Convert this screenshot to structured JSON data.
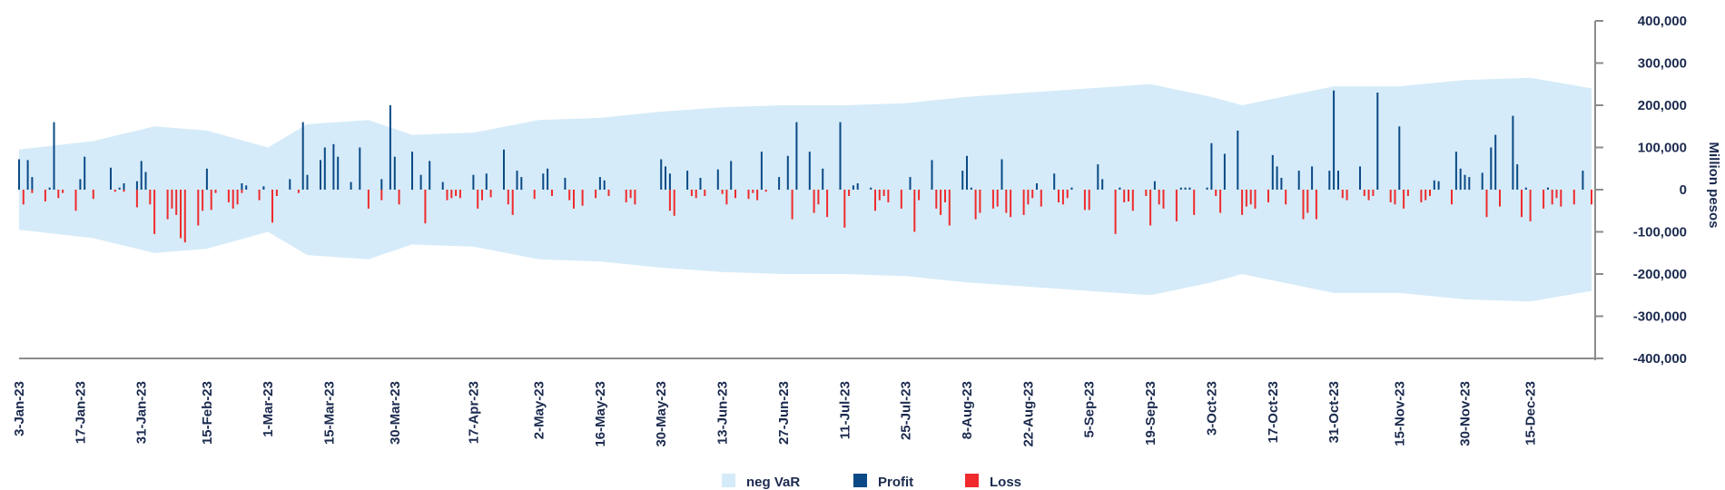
{
  "chart_data": {
    "type": "bar",
    "title": "",
    "xlabel": "",
    "ylabel": "Million pesos",
    "ylim": [
      -400000,
      400000
    ],
    "y_ticks": [
      400000,
      300000,
      200000,
      100000,
      0,
      -100000,
      -200000,
      -300000,
      -400000
    ],
    "y_tick_labels": [
      "400,000",
      "300,000",
      "200,000",
      "100,000",
      "0",
      "-100,000",
      "-200,000",
      "-300,000",
      "-400,000"
    ],
    "y_axis_position": "right",
    "grid": false,
    "legend_position": "bottom-center",
    "x_range": [
      "2023-01-03",
      "2023-12-29"
    ],
    "x_tick_labels": [
      "3-Jan-23",
      "17-Jan-23",
      "31-Jan-23",
      "15-Feb-23",
      "1-Mar-23",
      "15-Mar-23",
      "30-Mar-23",
      "17-Apr-23",
      "2-May-23",
      "16-May-23",
      "30-May-23",
      "13-Jun-23",
      "27-Jun-23",
      "11-Jul-23",
      "25-Jul-23",
      "8-Aug-23",
      "22-Aug-23",
      "5-Sep-23",
      "19-Sep-23",
      "3-Oct-23",
      "17-Oct-23",
      "31-Oct-23",
      "15-Nov-23",
      "30-Nov-23",
      "15-Dec-23"
    ],
    "colors": {
      "neg_var": "#d5ebf9",
      "profit": "#0b4a86",
      "loss": "#ef2b2d",
      "axis": "#8c8c8c",
      "text": "#1b2a4e"
    },
    "legend": [
      {
        "name": "neg VaR",
        "color": "#d5ebf9"
      },
      {
        "name": "Profit",
        "color": "#0b4a86"
      },
      {
        "name": "Loss",
        "color": "#ef2b2d"
      }
    ],
    "series": [
      {
        "name": "neg VaR",
        "kind": "symmetric-band",
        "x": [
          "2023-01-03",
          "2023-01-20",
          "2023-02-03",
          "2023-02-15",
          "2023-03-01",
          "2023-03-10",
          "2023-03-24",
          "2023-04-03",
          "2023-04-17",
          "2023-05-02",
          "2023-05-16",
          "2023-05-30",
          "2023-06-13",
          "2023-06-27",
          "2023-07-11",
          "2023-07-25",
          "2023-08-08",
          "2023-08-22",
          "2023-09-05",
          "2023-09-19",
          "2023-10-03",
          "2023-10-10",
          "2023-10-17",
          "2023-10-31",
          "2023-11-15",
          "2023-11-30",
          "2023-12-15",
          "2023-12-29"
        ],
        "values": [
          95000,
          115000,
          150000,
          140000,
          100000,
          155000,
          165000,
          130000,
          135000,
          165000,
          170000,
          185000,
          195000,
          200000,
          200000,
          205000,
          220000,
          230000,
          240000,
          250000,
          220000,
          200000,
          215000,
          245000,
          245000,
          260000,
          265000,
          240000
        ]
      },
      {
        "name": "Profit",
        "x": [
          "2023-01-03",
          "2023-01-05",
          "2023-01-06",
          "2023-01-10",
          "2023-01-11",
          "2023-01-17",
          "2023-01-18",
          "2023-01-24",
          "2023-01-26",
          "2023-01-27",
          "2023-01-30",
          "2023-01-31",
          "2023-02-01",
          "2023-02-15",
          "2023-02-23",
          "2023-02-24",
          "2023-02-28",
          "2023-03-06",
          "2023-03-09",
          "2023-03-10",
          "2023-03-13",
          "2023-03-14",
          "2023-03-16",
          "2023-03-17",
          "2023-03-20",
          "2023-03-22",
          "2023-03-27",
          "2023-03-29",
          "2023-03-30",
          "2023-04-03",
          "2023-04-05",
          "2023-04-07",
          "2023-04-10",
          "2023-04-17",
          "2023-04-20",
          "2023-04-24",
          "2023-04-27",
          "2023-04-28",
          "2023-05-03",
          "2023-05-04",
          "2023-05-08",
          "2023-05-16",
          "2023-05-17",
          "2023-05-30",
          "2023-05-31",
          "2023-06-01",
          "2023-06-05",
          "2023-06-08",
          "2023-06-12",
          "2023-06-15",
          "2023-06-22",
          "2023-06-26",
          "2023-06-28",
          "2023-06-30",
          "2023-07-03",
          "2023-07-06",
          "2023-07-10",
          "2023-07-13",
          "2023-07-14",
          "2023-07-17",
          "2023-07-26",
          "2023-07-31",
          "2023-08-07",
          "2023-08-08",
          "2023-08-09",
          "2023-08-16",
          "2023-08-24",
          "2023-08-28",
          "2023-09-01",
          "2023-09-07",
          "2023-09-08",
          "2023-09-12",
          "2023-09-20",
          "2023-09-26",
          "2023-09-27",
          "2023-09-28",
          "2023-10-02",
          "2023-10-03",
          "2023-10-06",
          "2023-10-09",
          "2023-10-17",
          "2023-10-18",
          "2023-10-19",
          "2023-10-23",
          "2023-10-26",
          "2023-10-30",
          "2023-10-31",
          "2023-11-01",
          "2023-11-06",
          "2023-11-10",
          "2023-11-15",
          "2023-11-23",
          "2023-11-24",
          "2023-11-28",
          "2023-11-29",
          "2023-11-30",
          "2023-12-01",
          "2023-12-04",
          "2023-12-06",
          "2023-12-07",
          "2023-12-11",
          "2023-12-12",
          "2023-12-14",
          "2023-12-19",
          "2023-12-27"
        ],
        "values": [
          72000,
          70000,
          30000,
          5000,
          160000,
          25000,
          78000,
          52000,
          5000,
          15000,
          20000,
          68000,
          42000,
          50000,
          15000,
          10000,
          8000,
          25000,
          160000,
          35000,
          70000,
          100000,
          108000,
          78000,
          18000,
          100000,
          25000,
          200000,
          78000,
          90000,
          35000,
          68000,
          18000,
          35000,
          38000,
          95000,
          45000,
          30000,
          38000,
          50000,
          28000,
          30000,
          22000,
          72000,
          55000,
          38000,
          45000,
          28000,
          48000,
          68000,
          90000,
          30000,
          80000,
          160000,
          90000,
          50000,
          160000,
          10000,
          15000,
          5000,
          30000,
          70000,
          45000,
          80000,
          5000,
          72000,
          15000,
          38000,
          5000,
          60000,
          25000,
          5000,
          20000,
          5000,
          5000,
          5000,
          5000,
          110000,
          85000,
          140000,
          82000,
          55000,
          28000,
          45000,
          55000,
          45000,
          235000,
          45000,
          55000,
          230000,
          150000,
          22000,
          20000,
          90000,
          50000,
          35000,
          30000,
          40000,
          100000,
          130000,
          175000,
          60000,
          5000,
          5000,
          45000
        ]
      },
      {
        "name": "Loss",
        "x": [
          "2023-01-04",
          "2023-01-06",
          "2023-01-09",
          "2023-01-12",
          "2023-01-13",
          "2023-01-16",
          "2023-01-20",
          "2023-01-25",
          "2023-01-27",
          "2023-01-30",
          "2023-02-02",
          "2023-02-03",
          "2023-02-06",
          "2023-02-07",
          "2023-02-08",
          "2023-02-09",
          "2023-02-10",
          "2023-02-13",
          "2023-02-14",
          "2023-02-16",
          "2023-02-17",
          "2023-02-20",
          "2023-02-21",
          "2023-02-22",
          "2023-02-23",
          "2023-02-27",
          "2023-03-02",
          "2023-03-03",
          "2023-03-08",
          "2023-03-24",
          "2023-03-27",
          "2023-03-31",
          "2023-04-06",
          "2023-04-11",
          "2023-04-12",
          "2023-04-13",
          "2023-04-14",
          "2023-04-18",
          "2023-04-19",
          "2023-04-21",
          "2023-04-25",
          "2023-04-26",
          "2023-05-01",
          "2023-05-05",
          "2023-05-09",
          "2023-05-10",
          "2023-05-12",
          "2023-05-15",
          "2023-05-18",
          "2023-05-22",
          "2023-05-23",
          "2023-05-24",
          "2023-06-01",
          "2023-06-02",
          "2023-06-06",
          "2023-06-07",
          "2023-06-09",
          "2023-06-13",
          "2023-06-14",
          "2023-06-16",
          "2023-06-19",
          "2023-06-20",
          "2023-06-21",
          "2023-06-23",
          "2023-06-29",
          "2023-07-04",
          "2023-07-05",
          "2023-07-07",
          "2023-07-11",
          "2023-07-12",
          "2023-07-18",
          "2023-07-19",
          "2023-07-20",
          "2023-07-21",
          "2023-07-24",
          "2023-07-27",
          "2023-07-28",
          "2023-08-01",
          "2023-08-02",
          "2023-08-03",
          "2023-08-04",
          "2023-08-10",
          "2023-08-11",
          "2023-08-14",
          "2023-08-15",
          "2023-08-17",
          "2023-08-18",
          "2023-08-21",
          "2023-08-22",
          "2023-08-23",
          "2023-08-25",
          "2023-08-29",
          "2023-08-30",
          "2023-08-31",
          "2023-09-04",
          "2023-09-05",
          "2023-09-11",
          "2023-09-13",
          "2023-09-14",
          "2023-09-15",
          "2023-09-18",
          "2023-09-19",
          "2023-09-21",
          "2023-09-22",
          "2023-09-25",
          "2023-09-29",
          "2023-10-04",
          "2023-10-05",
          "2023-10-10",
          "2023-10-11",
          "2023-10-12",
          "2023-10-13",
          "2023-10-16",
          "2023-10-20",
          "2023-10-24",
          "2023-10-25",
          "2023-10-27",
          "2023-11-02",
          "2023-11-03",
          "2023-11-07",
          "2023-11-08",
          "2023-11-09",
          "2023-11-13",
          "2023-11-14",
          "2023-11-16",
          "2023-11-17",
          "2023-11-20",
          "2023-11-21",
          "2023-11-22",
          "2023-11-27",
          "2023-12-05",
          "2023-12-08",
          "2023-12-13",
          "2023-12-15",
          "2023-12-18",
          "2023-12-20",
          "2023-12-21",
          "2023-12-22",
          "2023-12-25",
          "2023-12-29"
        ],
        "values": [
          -35000,
          -8000,
          -28000,
          -20000,
          -8000,
          -50000,
          -22000,
          -5000,
          -5000,
          -42000,
          -35000,
          -105000,
          -70000,
          -45000,
          -60000,
          -115000,
          -125000,
          -85000,
          -50000,
          -48000,
          -8000,
          -30000,
          -45000,
          -35000,
          -8000,
          -25000,
          -78000,
          -15000,
          -8000,
          -45000,
          -25000,
          -35000,
          -80000,
          -25000,
          -20000,
          -15000,
          -20000,
          -45000,
          -25000,
          -18000,
          -35000,
          -60000,
          -22000,
          -15000,
          -25000,
          -45000,
          -38000,
          -20000,
          -15000,
          -30000,
          -20000,
          -35000,
          -50000,
          -62000,
          -15000,
          -20000,
          -15000,
          -10000,
          -35000,
          -20000,
          -22000,
          -8000,
          -25000,
          -5000,
          -70000,
          -55000,
          -35000,
          -65000,
          -90000,
          -15000,
          -50000,
          -25000,
          -15000,
          -30000,
          -45000,
          -100000,
          -25000,
          -45000,
          -60000,
          -30000,
          -85000,
          -70000,
          -55000,
          -45000,
          -40000,
          -55000,
          -65000,
          -60000,
          -35000,
          -20000,
          -40000,
          -30000,
          -35000,
          -20000,
          -48000,
          -48000,
          -105000,
          -30000,
          -28000,
          -50000,
          -15000,
          -85000,
          -35000,
          -45000,
          -75000,
          -60000,
          -15000,
          -55000,
          -60000,
          -40000,
          -35000,
          -45000,
          -30000,
          -35000,
          -70000,
          -55000,
          -70000,
          -20000,
          -25000,
          -15000,
          -25000,
          -15000,
          -30000,
          -35000,
          -45000,
          -15000,
          -30000,
          -25000,
          -15000,
          -35000,
          -65000,
          -40000,
          -65000,
          -75000,
          -45000,
          -35000,
          -20000,
          -40000,
          -35000,
          -35000
        ]
      }
    ]
  }
}
